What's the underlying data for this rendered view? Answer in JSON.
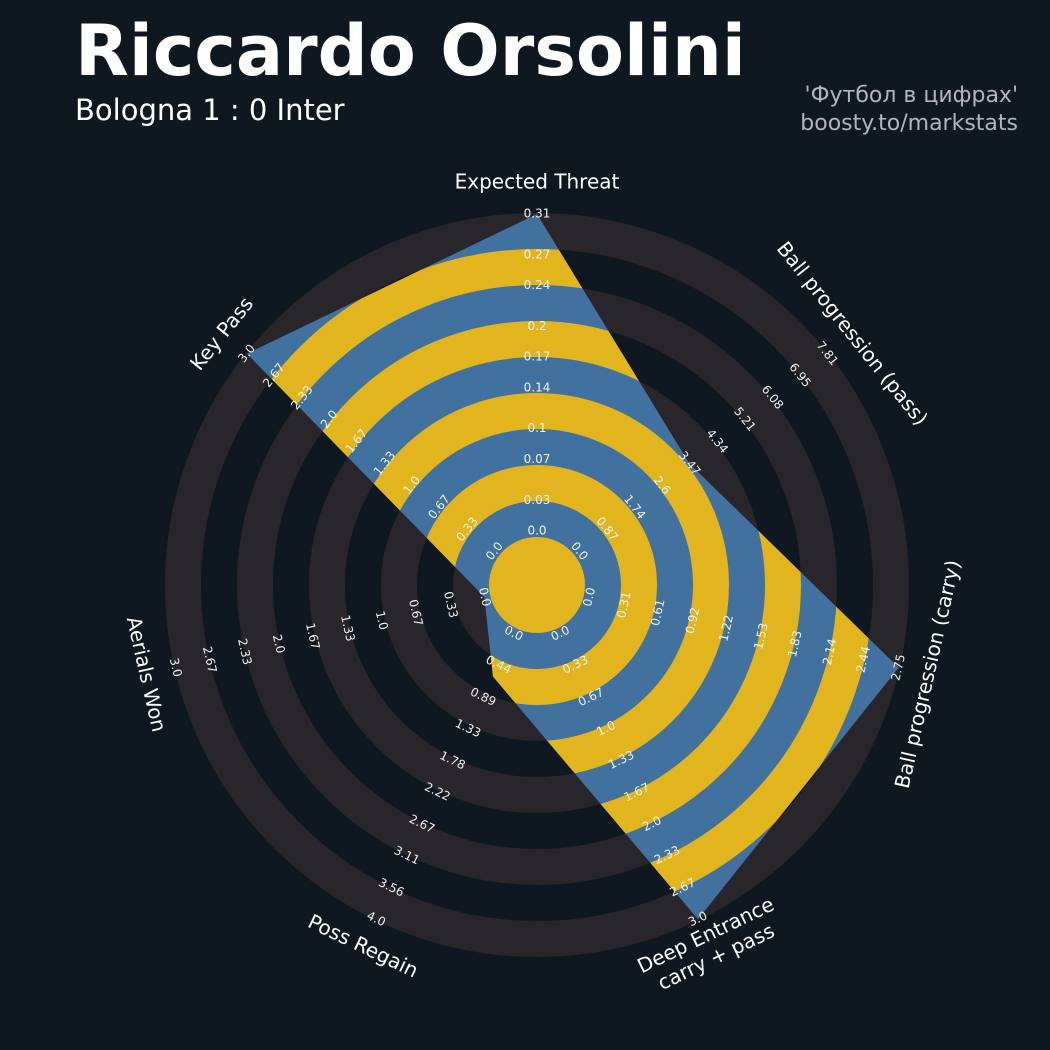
{
  "chart_data": {
    "type": "radar",
    "title": "Riccardo Orsolini",
    "subtitle": "Bologna 1 : 0 Inter",
    "credits": [
      "'Футбол в цифрах'",
      "boosty.to/markstats"
    ],
    "categories": [
      "Expected Threat",
      "Ball progression (pass)",
      "Ball progression (carry)",
      [
        "Deep Entrance",
        "carry + pass"
      ],
      "Poss Regain",
      "Aerials Won",
      "Key Pass"
    ],
    "values": [
      0.31,
      3.47,
      2.75,
      3,
      0.6,
      0,
      3
    ],
    "axes": [
      {
        "lim": [
          0,
          0.31
        ],
        "ticks": [
          {
            "value": 0,
            "label": "0.0"
          },
          0.03,
          0.07,
          0.1,
          0.14,
          0.17,
          0.2,
          0.24,
          0.27,
          0.31
        ]
      },
      {
        "lim": [
          0,
          7.81
        ],
        "ticks": [
          {
            "value": 0,
            "label": "0.0"
          },
          0.87,
          1.74,
          2.6,
          3.47,
          4.34,
          5.21,
          6.08,
          6.95,
          7.81
        ]
      },
      {
        "lim": [
          0,
          2.75
        ],
        "ticks": [
          {
            "value": 0,
            "label": "0.0"
          },
          0.31,
          0.61,
          0.92,
          1.22,
          1.53,
          1.83,
          2.14,
          2.44,
          2.75
        ]
      },
      {
        "lim": [
          0,
          3
        ],
        "ticks": [
          {
            "value": 0,
            "label": "0.0"
          },
          0.33,
          0.67,
          {
            "value": 1,
            "label": "1.0"
          },
          1.33,
          1.67,
          {
            "value": 2,
            "label": "2.0"
          },
          2.33,
          2.67,
          {
            "value": 3,
            "label": "3.0"
          }
        ]
      },
      {
        "lim": [
          0,
          4
        ],
        "ticks": [
          {
            "value": 0,
            "label": "0.0"
          },
          0.44,
          0.89,
          1.33,
          1.78,
          2.22,
          2.67,
          3.11,
          3.56,
          {
            "value": 4,
            "label": "4.0"
          }
        ]
      },
      {
        "lim": [
          0,
          3
        ],
        "ticks": [
          {
            "value": 0,
            "label": "0.0"
          },
          0.33,
          0.67,
          {
            "value": 1,
            "label": "1.0"
          },
          1.33,
          1.67,
          {
            "value": 2,
            "label": "2.0"
          },
          2.33,
          2.67,
          {
            "value": 3,
            "label": "3.0"
          }
        ]
      },
      {
        "lim": [
          0,
          3
        ],
        "ticks": [
          {
            "value": 0,
            "label": "0.0"
          },
          0.33,
          0.67,
          {
            "value": 1,
            "label": "1.0"
          },
          1.33,
          1.67,
          {
            "value": 2,
            "label": "2.0"
          },
          2.33,
          2.67,
          {
            "value": 3,
            "label": "3.0"
          }
        ]
      }
    ],
    "colors": {
      "polygon": "#41729f",
      "rings": "#e2b51f",
      "background_rings": "#28252b"
    }
  }
}
